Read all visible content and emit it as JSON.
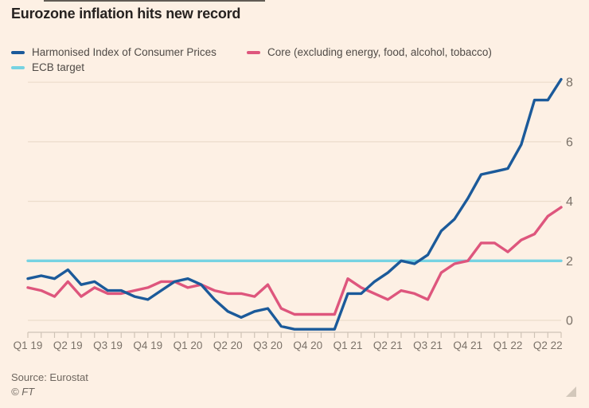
{
  "title": "Eurozone inflation hits new record",
  "legend": {
    "items": [
      {
        "label": "Harmonised Index of Consumer Prices",
        "color": "#1b5a9a"
      },
      {
        "label": "Core (excluding energy, food, alcohol, tobacco)",
        "color": "#de567d"
      },
      {
        "label": "ECB target",
        "color": "#76d3e2"
      }
    ]
  },
  "footer": {
    "source": "Source: Eurostat",
    "copyright": "© FT"
  },
  "colors": {
    "background": "#fdf0e4",
    "gridline": "#ecdccb",
    "axis": "#cfc3b6",
    "axis_label": "#7a7168",
    "hicp_line": "#1b5a9a",
    "core_line": "#de567d",
    "ecb_line": "#76d3e2"
  },
  "chart_data": {
    "type": "line",
    "title": "Eurozone inflation hits new record",
    "x_unit": "month",
    "x_start": "Jan 2019",
    "x_end": "May 2022",
    "grid": "horizontal",
    "legend_position": "top",
    "ylim": [
      -0.6,
      8.4
    ],
    "y_ticks": [
      0,
      2,
      4,
      6,
      8
    ],
    "y_axis_side": "right",
    "x_tick_labels": [
      "Q1 19",
      "Q2 19",
      "Q3 19",
      "Q4 19",
      "Q1 20",
      "Q2 20",
      "Q3 20",
      "Q4 20",
      "Q1 21",
      "Q2 21",
      "Q3 21",
      "Q4 21",
      "Q1 22",
      "Q2 22"
    ],
    "x_tick_month_positions": [
      0,
      3,
      6,
      9,
      12,
      15,
      18,
      21,
      24,
      27,
      30,
      33,
      36,
      39
    ],
    "ecb_target": {
      "label": "ECB target",
      "value": 2,
      "color": "#76d3e2"
    },
    "series": [
      {
        "name": "Harmonised Index of Consumer Prices",
        "color": "#1b5a9a",
        "values": [
          1.4,
          1.5,
          1.4,
          1.7,
          1.2,
          1.3,
          1.0,
          1.0,
          0.8,
          0.7,
          1.0,
          1.3,
          1.4,
          1.2,
          0.7,
          0.3,
          0.1,
          0.3,
          0.4,
          -0.2,
          -0.3,
          -0.3,
          -0.3,
          -0.3,
          0.9,
          0.9,
          1.3,
          1.6,
          2.0,
          1.9,
          2.2,
          3.0,
          3.4,
          4.1,
          4.9,
          5.0,
          5.1,
          5.9,
          7.4,
          7.4,
          8.1
        ]
      },
      {
        "name": "Core (excluding energy, food, alcohol, tobacco)",
        "color": "#de567d",
        "values": [
          1.1,
          1.0,
          0.8,
          1.3,
          0.8,
          1.1,
          0.9,
          0.9,
          1.0,
          1.1,
          1.3,
          1.3,
          1.1,
          1.2,
          1.0,
          0.9,
          0.9,
          0.8,
          1.2,
          0.4,
          0.2,
          0.2,
          0.2,
          0.2,
          1.4,
          1.1,
          0.9,
          0.7,
          1.0,
          0.9,
          0.7,
          1.6,
          1.9,
          2.0,
          2.6,
          2.6,
          2.3,
          2.7,
          2.9,
          3.5,
          3.8
        ]
      }
    ]
  }
}
